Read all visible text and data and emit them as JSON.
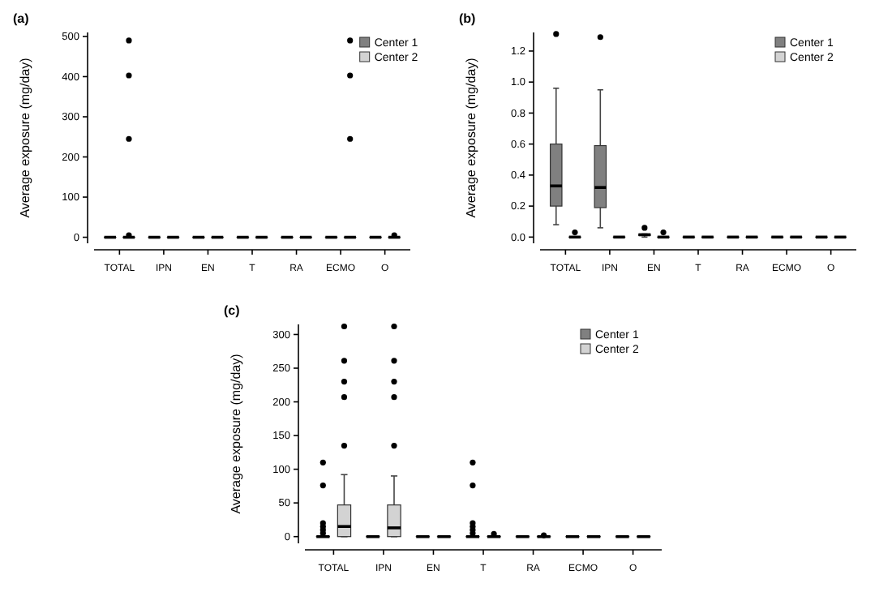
{
  "chart_data": [
    {
      "type": "box",
      "title": "(a)",
      "ylabel": "Average exposure (mg/day)",
      "categories": [
        "TOTAL",
        "IPN",
        "EN",
        "T",
        "RA",
        "ECMO",
        "O"
      ],
      "ylim": [
        -15,
        510
      ],
      "yticks": [
        0,
        100,
        200,
        300,
        400,
        500
      ],
      "grid": false,
      "legend": "top right",
      "series": [
        {
          "name": "Center 1",
          "color": "#808080",
          "boxes": [
            {
              "low": 0,
              "q1": 0,
              "median": 0,
              "q3": 0,
              "high": 0
            },
            {
              "low": 0,
              "q1": 0,
              "median": 0,
              "q3": 0,
              "high": 0
            },
            {
              "low": 0,
              "q1": 0,
              "median": 0,
              "q3": 0,
              "high": 0
            },
            {
              "low": 0,
              "q1": 0,
              "median": 0,
              "q3": 0,
              "high": 0
            },
            {
              "low": 0,
              "q1": 0,
              "median": 0,
              "q3": 0,
              "high": 0
            },
            {
              "low": 0,
              "q1": 0,
              "median": 0,
              "q3": 0,
              "high": 0
            },
            {
              "low": 0,
              "q1": 0,
              "median": 0,
              "q3": 0,
              "high": 0
            }
          ]
        },
        {
          "name": "Center 2",
          "color": "#d3d3d3",
          "boxes": [
            {
              "low": 0,
              "q1": 0,
              "median": 0,
              "q3": 0,
              "high": 0,
              "outliers": [
                5,
                245,
                403,
                490
              ]
            },
            {
              "low": 0,
              "q1": 0,
              "median": 0,
              "q3": 0,
              "high": 0
            },
            {
              "low": 0,
              "q1": 0,
              "median": 0,
              "q3": 0,
              "high": 0
            },
            {
              "low": 0,
              "q1": 0,
              "median": 0,
              "q3": 0,
              "high": 0
            },
            {
              "low": 0,
              "q1": 0,
              "median": 0,
              "q3": 0,
              "high": 0
            },
            {
              "low": 0,
              "q1": 0,
              "median": 0,
              "q3": 0,
              "high": 0,
              "outliers": [
                245,
                403,
                490
              ]
            },
            {
              "low": 0,
              "q1": 0,
              "median": 0,
              "q3": 0,
              "high": 0,
              "outliers": [
                5
              ]
            }
          ]
        }
      ]
    },
    {
      "type": "box",
      "title": "(b)",
      "ylabel": "Average exposure (mg/day)",
      "categories": [
        "TOTAL",
        "IPN",
        "EN",
        "T",
        "RA",
        "ECMO",
        "O"
      ],
      "ylim": [
        -0.04,
        1.32
      ],
      "yticks": [
        {
          "value": 0,
          "label": "0.0"
        },
        0.2,
        0.4,
        0.6,
        0.8,
        {
          "value": 1,
          "label": "1.0"
        },
        1.2
      ],
      "grid": false,
      "legend": "top right",
      "series": [
        {
          "name": "Center 1",
          "color": "#808080",
          "boxes": [
            {
              "low": 0.08,
              "q1": 0.2,
              "median": 0.33,
              "q3": 0.6,
              "high": 0.96,
              "outliers": [
                1.31
              ]
            },
            {
              "low": 0.06,
              "q1": 0.19,
              "median": 0.32,
              "q3": 0.59,
              "high": 0.95,
              "outliers": [
                1.29
              ]
            },
            {
              "low": 0,
              "q1": 0.01,
              "median": 0.015,
              "q3": 0.02,
              "high": 0.02,
              "outliers": [
                0.06
              ]
            },
            {
              "low": 0,
              "q1": 0,
              "median": 0,
              "q3": 0,
              "high": 0
            },
            {
              "low": 0,
              "q1": 0,
              "median": 0,
              "q3": 0,
              "high": 0
            },
            {
              "low": 0,
              "q1": 0,
              "median": 0,
              "q3": 0,
              "high": 0
            },
            {
              "low": 0,
              "q1": 0,
              "median": 0,
              "q3": 0,
              "high": 0
            }
          ]
        },
        {
          "name": "Center 2",
          "color": "#d3d3d3",
          "boxes": [
            {
              "low": 0,
              "q1": 0,
              "median": 0,
              "q3": 0,
              "high": 0,
              "outliers": [
                0.03
              ]
            },
            {
              "low": 0,
              "q1": 0,
              "median": 0,
              "q3": 0,
              "high": 0
            },
            {
              "low": 0,
              "q1": 0,
              "median": 0,
              "q3": 0,
              "high": 0,
              "outliers": [
                0.03
              ]
            },
            {
              "low": 0,
              "q1": 0,
              "median": 0,
              "q3": 0,
              "high": 0
            },
            {
              "low": 0,
              "q1": 0,
              "median": 0,
              "q3": 0,
              "high": 0
            },
            {
              "low": 0,
              "q1": 0,
              "median": 0,
              "q3": 0,
              "high": 0
            },
            {
              "low": 0,
              "q1": 0,
              "median": 0,
              "q3": 0,
              "high": 0
            }
          ]
        }
      ]
    },
    {
      "type": "box",
      "title": "(c)",
      "ylabel": "Average exposure (mg/day)",
      "categories": [
        "TOTAL",
        "IPN",
        "EN",
        "T",
        "RA",
        "ECMO",
        "O"
      ],
      "ylim": [
        -10,
        315
      ],
      "yticks": [
        0,
        50,
        100,
        150,
        200,
        250,
        300
      ],
      "grid": false,
      "legend": "top right",
      "series": [
        {
          "name": "Center 1",
          "color": "#808080",
          "boxes": [
            {
              "low": 0,
              "q1": 0,
              "median": 0,
              "q3": 0,
              "high": 0,
              "outliers": [
                5,
                10,
                15,
                20,
                76,
                110
              ]
            },
            {
              "low": 0,
              "q1": 0,
              "median": 0,
              "q3": 0,
              "high": 0
            },
            {
              "low": 0,
              "q1": 0,
              "median": 0,
              "q3": 0,
              "high": 0
            },
            {
              "low": 0,
              "q1": 0,
              "median": 0,
              "q3": 0,
              "high": 0,
              "outliers": [
                5,
                10,
                15,
                20,
                76,
                110
              ]
            },
            {
              "low": 0,
              "q1": 0,
              "median": 0,
              "q3": 0,
              "high": 0
            },
            {
              "low": 0,
              "q1": 0,
              "median": 0,
              "q3": 0,
              "high": 0
            },
            {
              "low": 0,
              "q1": 0,
              "median": 0,
              "q3": 0,
              "high": 0
            }
          ]
        },
        {
          "name": "Center 2",
          "color": "#d3d3d3",
          "boxes": [
            {
              "low": 0,
              "q1": 0,
              "median": 15,
              "q3": 47,
              "high": 92,
              "outliers": [
                135,
                207,
                230,
                261,
                312
              ]
            },
            {
              "low": 0,
              "q1": 0,
              "median": 13,
              "q3": 47,
              "high": 90,
              "outliers": [
                135,
                207,
                230,
                261,
                312
              ]
            },
            {
              "low": 0,
              "q1": 0,
              "median": 0,
              "q3": 0,
              "high": 0
            },
            {
              "low": 0,
              "q1": 0,
              "median": 0,
              "q3": 0,
              "high": 0,
              "outliers": [
                4
              ]
            },
            {
              "low": 0,
              "q1": 0,
              "median": 0,
              "q3": 0,
              "high": 0,
              "outliers": [
                2
              ]
            },
            {
              "low": 0,
              "q1": 0,
              "median": 0,
              "q3": 0,
              "high": 0
            },
            {
              "low": 0,
              "q1": 0,
              "median": 0,
              "q3": 0,
              "high": 0
            }
          ]
        }
      ]
    }
  ]
}
